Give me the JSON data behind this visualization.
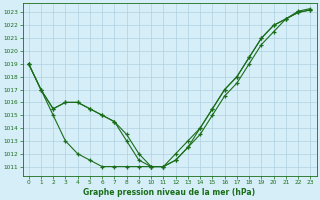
{
  "background_color": "#d6eef8",
  "grid_color": "#b0d0e0",
  "line_color": "#1a6e1a",
  "title": "Graphe pression niveau de la mer (hPa)",
  "xlim": [
    -0.5,
    23.5
  ],
  "ylim": [
    1010.3,
    1023.7
  ],
  "xticks": [
    0,
    1,
    2,
    3,
    4,
    5,
    6,
    7,
    8,
    9,
    10,
    11,
    12,
    13,
    14,
    15,
    16,
    17,
    18,
    19,
    20,
    21,
    22,
    23
  ],
  "yticks": [
    1011,
    1012,
    1013,
    1014,
    1015,
    1016,
    1017,
    1018,
    1019,
    1020,
    1021,
    1022,
    1023
  ],
  "series": [
    [
      1019,
      1017,
      1015,
      1013,
      1012,
      1011.5,
      1011,
      1011,
      1011,
      1011,
      1011,
      1011,
      1012,
      1013,
      1014,
      1015.5,
      1017,
      1018,
      1019.5,
      1021,
      1022,
      1022.5,
      1023,
      1023.2
    ],
    [
      1019,
      1017,
      1015.5,
      1016,
      1016,
      1015.5,
      1015,
      1014.5,
      1013.5,
      1012,
      1011,
      1011,
      1011.5,
      1012.5,
      1013.5,
      1015,
      1016.5,
      1017.5,
      1019,
      1020.5,
      1021.5,
      1022.5,
      1023.1,
      1023.3
    ],
    [
      1019,
      1017,
      1015.5,
      1016,
      1016,
      1015.5,
      1015,
      1014.5,
      1013,
      1011.5,
      1011,
      1011,
      1011.5,
      1012.5,
      1014,
      1015.5,
      1017,
      1018,
      1019.5,
      1021,
      1022,
      1022.5,
      1023,
      1023.2
    ]
  ]
}
